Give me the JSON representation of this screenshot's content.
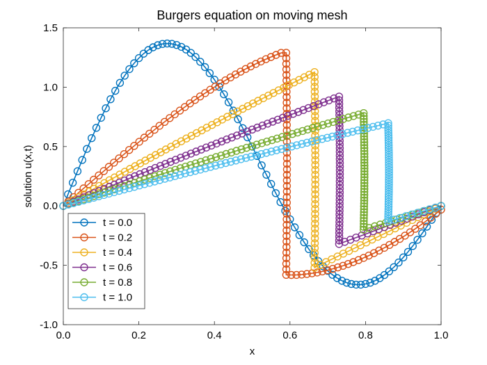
{
  "chart_data": {
    "type": "line",
    "title": "Burgers equation on moving mesh",
    "xlabel": "x",
    "ylabel": "solution u(x,t)",
    "xlim": [
      0,
      1
    ],
    "ylim": [
      -1,
      1.5
    ],
    "xticks": [
      "0.0",
      "0.2",
      "0.4",
      "0.6",
      "0.8",
      "1.0"
    ],
    "yticks": [
      "-1.0",
      "-0.5",
      "0.0",
      "0.5",
      "1.0",
      "1.5"
    ],
    "grid": false,
    "legend_position": "lower-left",
    "marker": "open-circle",
    "series": [
      {
        "name": "t = 0.0",
        "color": "#0072BD",
        "shock_x": null,
        "pre_slope": null,
        "post_start": null
      },
      {
        "name": "t = 0.2",
        "color": "#D95319",
        "shock_x": 0.59,
        "pre_slope": null,
        "post_start": -0.58
      },
      {
        "name": "t = 0.4",
        "color": "#EDB120",
        "shock_x": 0.665,
        "pre_slope": 1.79,
        "post_start": -0.52
      },
      {
        "name": "t = 0.6",
        "color": "#7E2F8E",
        "shock_x": 0.73,
        "pre_slope": 1.34,
        "post_start": -0.32
      },
      {
        "name": "t = 0.8",
        "color": "#77AC30",
        "shock_x": 0.795,
        "pre_slope": 1.05,
        "post_start": -0.2
      },
      {
        "name": "t = 1.0",
        "color": "#4DBEEE",
        "shock_x": 0.86,
        "pre_slope": 0.87,
        "post_start": -0.13
      }
    ]
  }
}
